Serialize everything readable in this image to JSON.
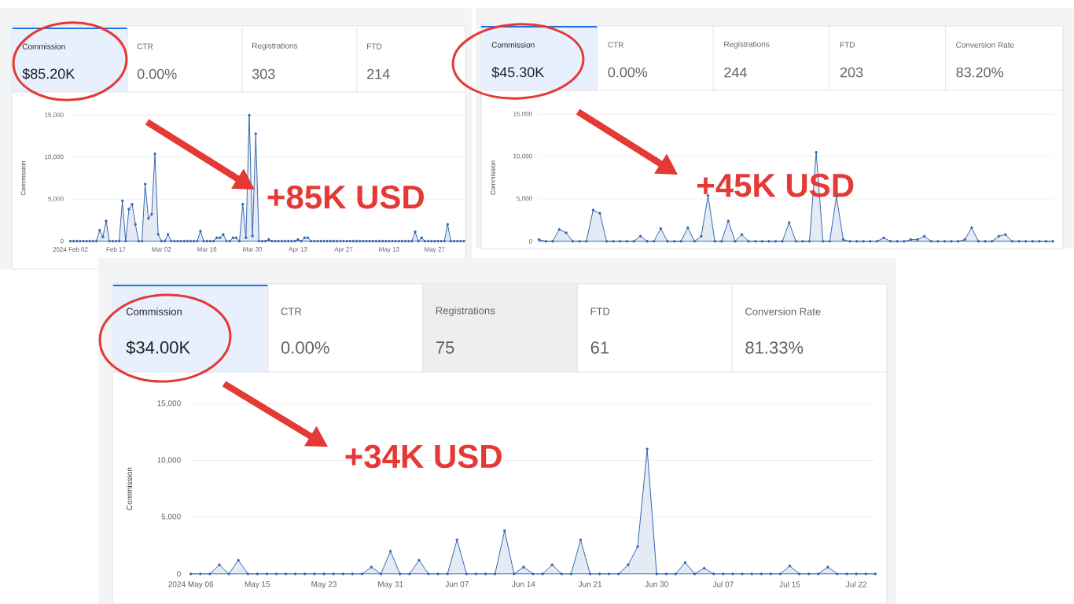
{
  "chart_data": [
    {
      "type": "other",
      "annotations": [
        "Commission",
        "$85.20K",
        "CTR",
        "0.00%",
        "Registrations",
        "303",
        "FTD",
        "214"
      ]
    },
    {
      "type": "area",
      "categories": [
        "2024 Feb 02",
        null,
        null,
        null,
        null,
        null,
        null,
        null,
        null,
        null,
        null,
        null,
        null,
        null,
        "Feb 17",
        null,
        null,
        null,
        null,
        null,
        null,
        null,
        null,
        null,
        null,
        null,
        null,
        null,
        "Mar 02",
        null,
        null,
        null,
        null,
        null,
        null,
        null,
        null,
        null,
        null,
        null,
        null,
        null,
        "Mar 16",
        null,
        null,
        null,
        null,
        null,
        null,
        null,
        null,
        null,
        null,
        null,
        null,
        null,
        "Mar 30",
        null,
        null,
        null,
        null,
        null,
        null,
        null,
        null,
        null,
        null,
        null,
        null,
        null,
        "Apr 13",
        null,
        null,
        null,
        null,
        null,
        null,
        null,
        null,
        null,
        null,
        null,
        null,
        null,
        "Apr 27",
        null,
        null,
        null,
        null,
        null,
        null,
        null,
        null,
        null,
        null,
        null,
        null,
        null,
        "May 13",
        null,
        null,
        null,
        null,
        null,
        null,
        null,
        null,
        null,
        null,
        null,
        null,
        null,
        "May 27",
        null,
        null,
        null,
        null,
        null,
        null,
        null,
        null,
        null
      ],
      "values": [
        0,
        0,
        0,
        0,
        0,
        0,
        0,
        0,
        0,
        1300,
        500,
        2400,
        0,
        0,
        0,
        0,
        4800,
        0,
        3800,
        4400,
        2000,
        0,
        0,
        6800,
        2700,
        3200,
        10400,
        800,
        0,
        0,
        800,
        0,
        0,
        0,
        0,
        0,
        0,
        0,
        0,
        0,
        1200,
        0,
        0,
        0,
        0,
        400,
        400,
        800,
        0,
        0,
        400,
        400,
        0,
        4400,
        400,
        15000,
        600,
        12800,
        0,
        0,
        0,
        200,
        0,
        0,
        0,
        0,
        0,
        0,
        0,
        0,
        200,
        0,
        400,
        400,
        0,
        0,
        0,
        0,
        0,
        0,
        0,
        0,
        0,
        0,
        0,
        0,
        0,
        0,
        0,
        0,
        0,
        0,
        0,
        0,
        0,
        0,
        0,
        0,
        0,
        0,
        0,
        0,
        0,
        0,
        0,
        0,
        1100,
        0,
        400,
        0,
        0,
        0,
        0,
        0,
        0,
        0,
        2000,
        0,
        0,
        0,
        0,
        0
      ],
      "color": "#3868b0",
      "ylim": [
        0,
        15000
      ],
      "yticks": [
        0,
        {
          "value": 5000,
          "label": "5,000"
        },
        {
          "value": 10000,
          "label": "10,000"
        },
        {
          "value": 15000,
          "label": "15,000"
        }
      ],
      "ylabel": "Commission",
      "grid": "y",
      "marker": "circle",
      "annotations": [
        "+85K USD"
      ]
    },
    {
      "type": "other",
      "annotations": [
        "Commission",
        "$45.30K",
        "CTR",
        "0.00%",
        "Registrations",
        "244",
        "FTD",
        "203",
        "Conversion Rate",
        "83.20%"
      ]
    },
    {
      "type": "area",
      "categories": [
        null,
        null,
        null,
        null,
        null,
        null,
        null,
        null,
        null,
        null,
        null,
        null,
        null,
        null,
        null,
        null,
        null,
        null,
        null,
        null,
        null,
        null,
        null,
        null,
        null,
        null,
        null,
        null,
        null,
        null,
        null,
        null,
        null,
        null,
        null,
        null,
        null,
        null,
        null,
        null,
        null,
        null,
        null,
        null,
        null,
        null,
        null,
        null,
        null,
        null,
        null,
        null,
        null,
        null,
        null,
        null,
        null,
        null,
        null,
        null,
        null,
        null,
        null,
        null,
        null,
        null,
        null,
        null,
        null,
        null,
        null,
        null,
        null,
        null,
        null,
        null,
        null
      ],
      "values": [
        200,
        0,
        0,
        1400,
        1000,
        0,
        0,
        0,
        3700,
        3300,
        0,
        0,
        0,
        0,
        0,
        600,
        0,
        0,
        1500,
        0,
        0,
        0,
        1600,
        0,
        600,
        5400,
        0,
        0,
        2400,
        0,
        800,
        0,
        0,
        0,
        0,
        0,
        0,
        2200,
        0,
        0,
        0,
        10500,
        0,
        0,
        5300,
        200,
        0,
        0,
        0,
        0,
        0,
        400,
        0,
        0,
        0,
        200,
        200,
        600,
        0,
        0,
        0,
        0,
        0,
        200,
        1600,
        0,
        0,
        0,
        600,
        800,
        0,
        0,
        0,
        0,
        0,
        0,
        0
      ],
      "color": "#3868b0",
      "ylim": [
        0,
        15000
      ],
      "yticks": [
        0,
        {
          "value": 5000,
          "label": "5,000"
        },
        {
          "value": 10000,
          "label": "10,000"
        },
        {
          "value": 15000,
          "label": "15,000"
        }
      ],
      "ylabel": "Commission",
      "grid": "y",
      "marker": "circle",
      "tick_labels": "y",
      "annotations": [
        "+45K USD"
      ]
    },
    {
      "type": "other",
      "annotations": [
        "Commission",
        "$34.00K",
        "CTR",
        "0.00%",
        "Registrations",
        "75",
        "FTD",
        "61",
        "Conversion Rate",
        "81.33%"
      ]
    },
    {
      "type": "area",
      "categories": [
        "2024 May 06",
        null,
        null,
        null,
        null,
        null,
        null,
        "May 15",
        null,
        null,
        null,
        null,
        null,
        null,
        "May 23",
        null,
        null,
        null,
        null,
        null,
        null,
        "May 31",
        null,
        null,
        null,
        null,
        null,
        null,
        "Jun 07",
        null,
        null,
        null,
        null,
        null,
        null,
        "Jun 14",
        null,
        null,
        null,
        null,
        null,
        null,
        "Jun 21",
        null,
        null,
        null,
        null,
        null,
        null,
        "Jun 30",
        null,
        null,
        null,
        null,
        null,
        null,
        "Jul 07",
        null,
        null,
        null,
        null,
        null,
        null,
        "Jul 15",
        null,
        null,
        null,
        null,
        null,
        null,
        "Jul 22",
        null,
        null
      ],
      "values": [
        0,
        0,
        0,
        800,
        0,
        1200,
        0,
        0,
        0,
        0,
        0,
        0,
        0,
        0,
        0,
        0,
        0,
        0,
        0,
        600,
        0,
        2000,
        0,
        0,
        1200,
        0,
        0,
        0,
        3000,
        0,
        0,
        0,
        0,
        3800,
        0,
        600,
        0,
        0,
        800,
        0,
        0,
        3000,
        0,
        0,
        0,
        0,
        800,
        2400,
        11000,
        0,
        0,
        0,
        1000,
        0,
        500,
        0,
        0,
        0,
        0,
        0,
        0,
        0,
        0,
        700,
        0,
        0,
        0,
        600,
        0,
        0,
        0,
        0,
        0
      ],
      "color": "#3868b0",
      "ylim": [
        0,
        15000
      ],
      "yticks": [
        0,
        {
          "value": 5000,
          "label": "5,000"
        },
        {
          "value": 10000,
          "label": "10,000"
        },
        {
          "value": 15000,
          "label": "15,000"
        }
      ],
      "ylabel": "Commission",
      "grid": "y",
      "marker": "circle",
      "annotations": [
        "+34K USD"
      ]
    }
  ]
}
